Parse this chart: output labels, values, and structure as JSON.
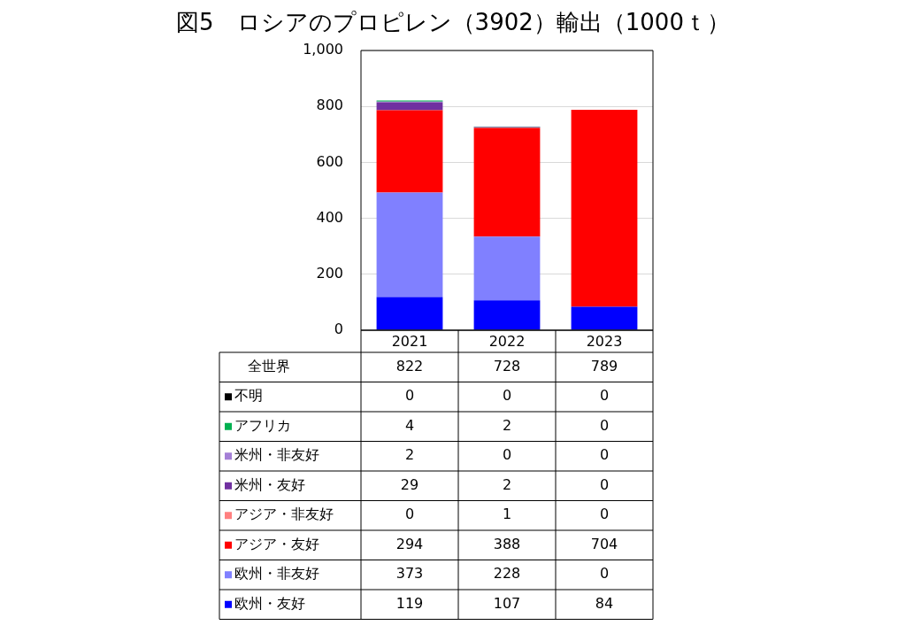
{
  "chart_data": {
    "type": "bar",
    "title": "図5　ロシアのプロピレン（3902）輸出（1000ｔ）",
    "categories": [
      "2021",
      "2022",
      "2023"
    ],
    "stacked": true,
    "ylim": [
      0,
      1000
    ],
    "yticks": [
      0,
      200,
      400,
      600,
      {
        "value": 800,
        "label": "800"
      },
      {
        "value": 1000,
        "label": "1,000"
      }
    ],
    "grid": "y",
    "legend": "bottom",
    "data_labels": true,
    "totals": [
      "822",
      "728",
      "789"
    ],
    "annotations": [
      "全世界"
    ],
    "series": [
      {
        "name": "欧州・友好",
        "color": "#0000ff",
        "values": [
          119,
          107,
          84
        ]
      },
      {
        "name": "欧州・非友好",
        "color": "#8080ff",
        "values": [
          373,
          228,
          0
        ]
      },
      {
        "name": "アジア・友好",
        "color": "#ff0000",
        "values": [
          294,
          388,
          704
        ]
      },
      {
        "name": "アジア・非友好",
        "color": "#ff8080",
        "values": [
          0,
          1,
          0
        ]
      },
      {
        "name": "米州・友好",
        "color": "#7030a0",
        "values": [
          29,
          2,
          0
        ]
      },
      {
        "name": "米州・非友好",
        "color": "#a47fd6",
        "values": [
          2,
          0,
          0
        ]
      },
      {
        "name": "アフリカ",
        "color": "#00b050",
        "values": [
          4,
          2,
          0
        ]
      },
      {
        "name": "不明",
        "color": "#000000",
        "values": [
          0,
          0,
          0
        ]
      }
    ]
  }
}
